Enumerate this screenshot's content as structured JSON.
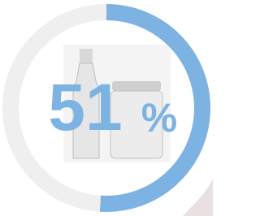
{
  "chart_data": {
    "type": "progress",
    "value": 51,
    "unit": "%",
    "lim": [
      0,
      100
    ],
    "color": "#7db3e2",
    "track_color": "#efefef"
  }
}
